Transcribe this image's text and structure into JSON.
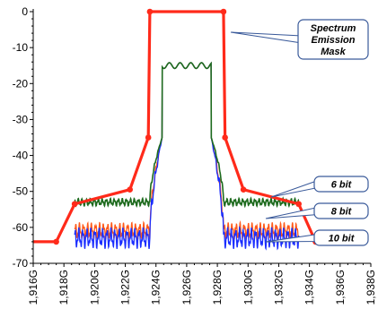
{
  "chart_data": {
    "type": "line",
    "xlim": [
      1916,
      1938
    ],
    "ylim": [
      -70,
      0
    ],
    "x_ticks": [
      1916,
      1918,
      1920,
      1922,
      1924,
      1926,
      1928,
      1930,
      1932,
      1934,
      1936,
      1938
    ],
    "x_tick_labels": [
      "1,916G",
      "1,918G",
      "1,920G",
      "1,922G",
      "1,924G",
      "1,926G",
      "1,928G",
      "1,930G",
      "1,932G",
      "1,934G",
      "1,936G",
      "1,938G"
    ],
    "y_ticks": [
      0,
      -10,
      -20,
      -30,
      -40,
      -50,
      -60,
      -70
    ],
    "y_tick_labels": [
      "0",
      "-10",
      "-20",
      "-30",
      "-40",
      "-50",
      "-60",
      "-70"
    ],
    "grid": false,
    "colors": {
      "mask": "#ff2a1a",
      "bit6": "#1e6b1e",
      "bit8": "#ff5a1a",
      "bit10": "#1a2dff",
      "callout_fill": "#ffffff",
      "callout_border": "#3a5a9a"
    },
    "mask": {
      "x": [
        1916,
        1917.5,
        1918.7,
        1922.3,
        1923.5,
        1923.6,
        1928.4,
        1928.5,
        1929.7,
        1933.3,
        1934.4,
        1936
      ],
      "y": [
        -64,
        -64,
        -53.5,
        -49.5,
        -35,
        0,
        0,
        -35,
        -49.5,
        -53.5,
        -64,
        -64
      ]
    },
    "series_shape": {
      "inband_start": 1924,
      "inband_end": 1928,
      "inband_level": -15,
      "edge_x": [
        1923.6,
        1924.4
      ],
      "edge_level": -35
    },
    "series": [
      {
        "key": "bit6",
        "x_start": 1918.7,
        "x_end": 1933.3,
        "floor": -53,
        "ripple": 0.7
      },
      {
        "key": "bit8",
        "x_start": 1918.7,
        "x_end": 1933.3,
        "floor": -61,
        "ripple": 1.6
      },
      {
        "key": "bit10",
        "x_start": 1918.7,
        "x_end": 1933.3,
        "floor": -63,
        "ripple": 2.0
      }
    ],
    "annotations": [
      {
        "key": "mask",
        "lines": [
          "Spectrum",
          "Emission",
          "Mask"
        ]
      },
      {
        "key": "bit6",
        "lines": [
          "6 bit"
        ]
      },
      {
        "key": "bit8",
        "lines": [
          "8 bit"
        ]
      },
      {
        "key": "bit10",
        "lines": [
          "10 bit"
        ]
      }
    ]
  }
}
